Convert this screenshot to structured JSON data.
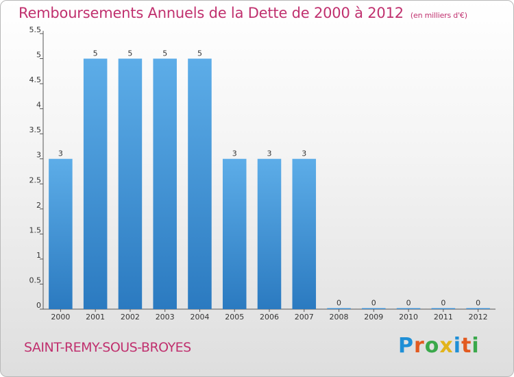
{
  "header": {
    "title": "Remboursements Annuels de la Dette de 2000 à 2012",
    "unit": "(en milliers d'€)"
  },
  "footer": {
    "commune": "SAINT-REMY-SOUS-BROYES",
    "logo_text": "Proxiti"
  },
  "colors": {
    "title": "#c0306e",
    "bar_top": "#5dade8",
    "bar_bottom": "#2b7ac0",
    "logo": [
      "#1f8fd6",
      "#e25a20",
      "#3aa84b",
      "#e2b41b",
      "#1f8fd6",
      "#e25a20",
      "#3aa84b"
    ]
  },
  "chart_data": {
    "type": "bar",
    "title": "Remboursements Annuels de la Dette de 2000 à 2012",
    "xlabel": "",
    "ylabel": "",
    "categories": [
      "2000",
      "2001",
      "2002",
      "2003",
      "2004",
      "2005",
      "2006",
      "2007",
      "2008",
      "2009",
      "2010",
      "2011",
      "2012"
    ],
    "values": [
      3,
      5,
      5,
      5,
      5,
      3,
      3,
      3,
      0,
      0,
      0,
      0,
      0
    ],
    "value_labels": [
      "3",
      "5",
      "5",
      "5",
      "5",
      "3",
      "3",
      "3",
      "0",
      "0",
      "0",
      "0",
      "0"
    ],
    "ylim": [
      0,
      5.5
    ],
    "yticks": [
      0,
      0.5,
      1,
      1.5,
      2,
      2.5,
      3,
      3.5,
      4,
      4.5,
      5,
      5.5
    ],
    "ytick_labels": [
      "0",
      "0.5",
      "1",
      "1.5",
      "2",
      "2.5",
      "3",
      "3.5",
      "4",
      "4.5",
      "5",
      "5.5"
    ],
    "grid": false,
    "legend": "none"
  }
}
